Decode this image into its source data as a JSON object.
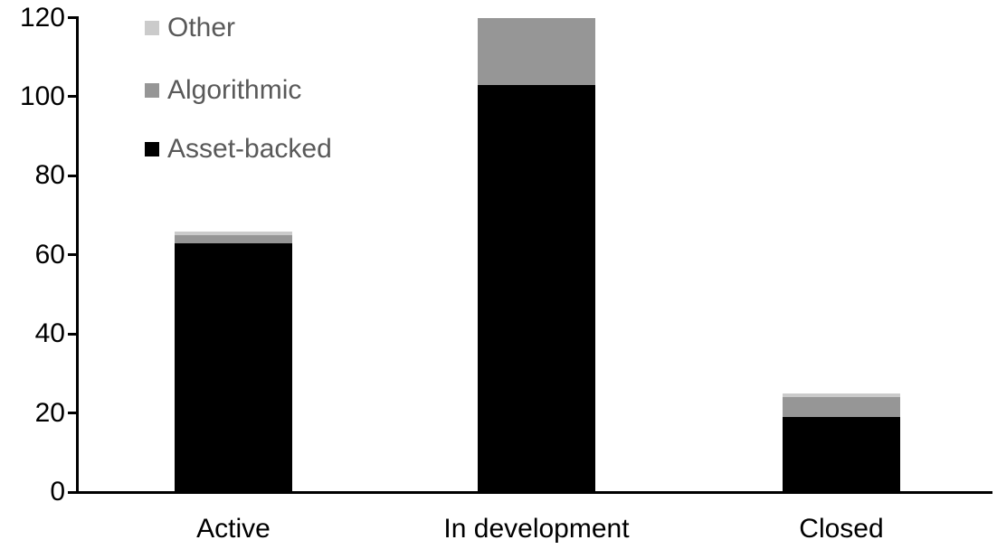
{
  "chart_data": {
    "type": "bar",
    "stacked": true,
    "title": "",
    "xlabel": "",
    "ylabel": "",
    "categories": [
      "Active",
      "In development",
      "Closed"
    ],
    "series": [
      {
        "name": "Asset-backed",
        "color": "#000000",
        "values": [
          63,
          103,
          19
        ]
      },
      {
        "name": "Algorithmic",
        "color": "#969696",
        "values": [
          2,
          17,
          5
        ]
      },
      {
        "name": "Other",
        "color": "#cbcbcb",
        "values": [
          1,
          0,
          1
        ]
      }
    ],
    "totals": [
      66,
      120,
      25
    ],
    "ylim": [
      0,
      120
    ],
    "yticks": [
      0,
      20,
      40,
      60,
      80,
      100,
      120
    ],
    "grid": false,
    "axis_color": "#000000",
    "tick_label_color": "#000000",
    "category_label_color": "#000000",
    "legend": {
      "position": "top-left",
      "order": [
        "Other",
        "Algorithmic",
        "Asset-backed"
      ],
      "text_color": "#595959"
    }
  }
}
